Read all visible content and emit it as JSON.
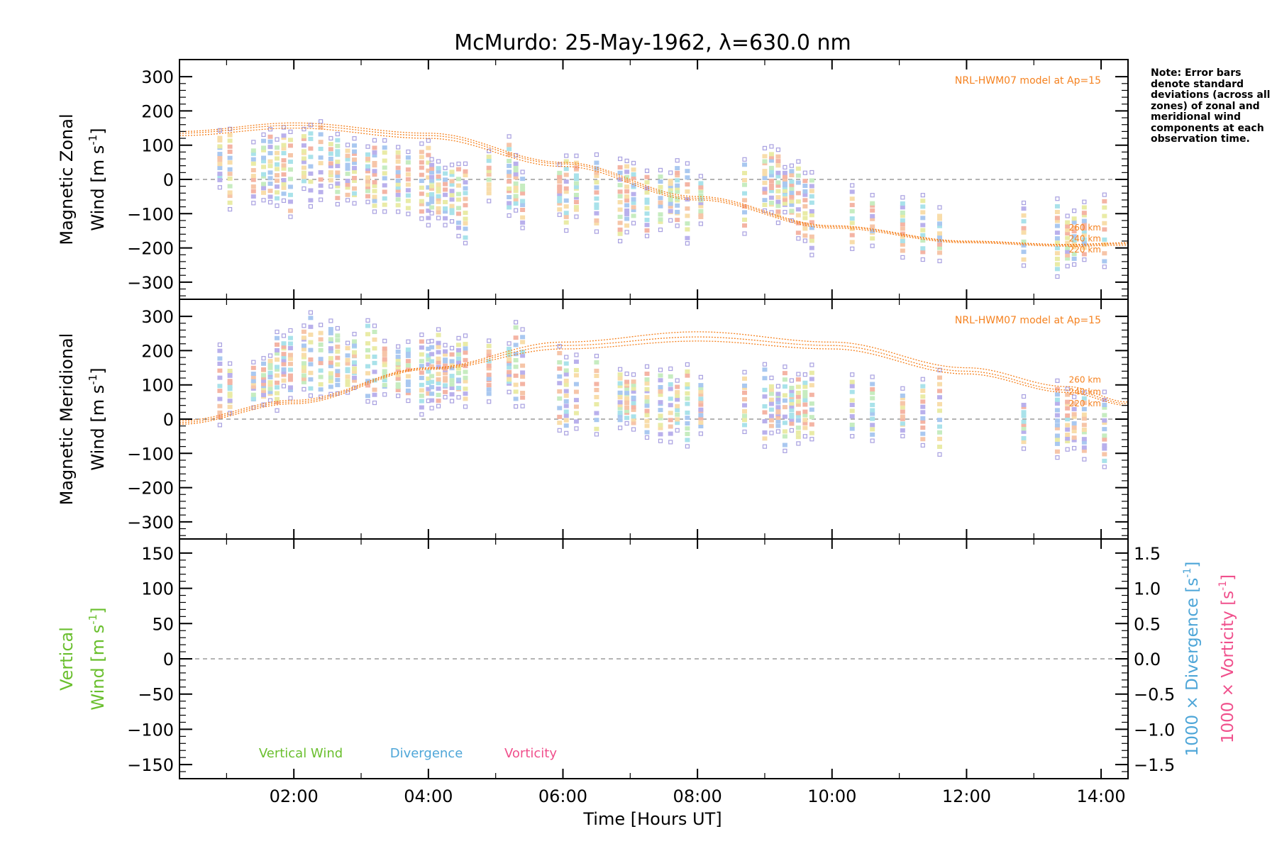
{
  "title": "McMurdo: 25-May-1962, λ=630.0 nm",
  "note": "Note: Error bars denote standard deviations (across all zones) of zonal and meridional wind components at each observation time.",
  "xlabel": "Time [Hours UT]",
  "x_tick_labels": [
    "02:00",
    "04:00",
    "06:00",
    "08:00",
    "10:00",
    "12:00",
    "14:00"
  ],
  "model_label": "NRL-HWM07 model at Ap=15",
  "altitude_labels": [
    "260 km",
    "240 km",
    "220 km"
  ],
  "panels": {
    "zonal": {
      "ylabel_line1": "Magnetic Zonal",
      "ylabel_line2": "Wind [m s",
      "ylabel_sup": "-1",
      "ylabel_close": "]",
      "yticks": [
        "300",
        "200",
        "100",
        "0",
        "−100",
        "−200",
        "−300"
      ]
    },
    "meridional": {
      "ylabel_line1": "Magnetic Meridional",
      "ylabel_line2": "Wind [m s",
      "ylabel_sup": "-1",
      "ylabel_close": "]",
      "yticks": [
        "300",
        "200",
        "100",
        "0",
        "−100",
        "−200",
        "−300"
      ]
    },
    "vertical": {
      "ylabel_line1": "Vertical",
      "ylabel_line2": "Wind [m s",
      "ylabel_sup": "-1",
      "ylabel_close": "]",
      "yticks": [
        "150",
        "100",
        "50",
        "0",
        "−50",
        "−100",
        "−150"
      ],
      "right_yticks": [
        "1.5",
        "1.0",
        "0.5",
        "0.0",
        "−0.5",
        "−1.0",
        "−1.5"
      ],
      "right_label_div": "1000 × Divergence [s",
      "right_label_vor": "1000 × Vorticity [s",
      "right_sup": "-1",
      "right_close": "]",
      "legend": [
        "Vertical Wind",
        "Divergence",
        "Vorticity"
      ]
    }
  },
  "colors": {
    "model": "#f58220",
    "vertical": "#6abf2e",
    "divergence": "#4ea6d8",
    "vorticity": "#f0508c",
    "axis": "#000000",
    "zero_line": "#888888"
  },
  "chart_data": [
    {
      "type": "scatter",
      "title": "McMurdo: 25-May-1962, λ=630.0 nm",
      "xlabel": "",
      "ylabel": "Magnetic Zonal Wind [m s-1]",
      "xlim": [
        0.3,
        14.4
      ],
      "ylim": [
        -350,
        350
      ],
      "grid": false,
      "obs_times": [
        0.9,
        1.05,
        1.4,
        1.55,
        1.65,
        1.75,
        1.85,
        1.95,
        2.15,
        2.25,
        2.4,
        2.55,
        2.65,
        2.8,
        2.9,
        3.1,
        3.2,
        3.35,
        3.55,
        3.7,
        3.9,
        4.0,
        4.05,
        4.15,
        4.25,
        4.35,
        4.45,
        4.55,
        4.9,
        5.2,
        5.3,
        5.4,
        5.95,
        6.05,
        6.2,
        6.5,
        6.85,
        6.95,
        7.05,
        7.25,
        7.45,
        7.6,
        7.7,
        7.85,
        8.05,
        8.7,
        9.0,
        9.1,
        9.2,
        9.3,
        9.4,
        9.5,
        9.6,
        9.7,
        10.3,
        10.6,
        11.05,
        11.35,
        11.6,
        12.85,
        13.35,
        13.5,
        13.6,
        13.75,
        14.05
      ],
      "centers": [
        60,
        30,
        20,
        35,
        40,
        20,
        45,
        15,
        60,
        40,
        55,
        50,
        30,
        20,
        25,
        15,
        10,
        10,
        0,
        -10,
        -5,
        -10,
        -20,
        -30,
        -50,
        -40,
        -60,
        -70,
        10,
        10,
        -10,
        -60,
        -30,
        -40,
        -20,
        -40,
        -60,
        -50,
        -40,
        -70,
        -60,
        -50,
        -40,
        -70,
        -60,
        -50,
        0,
        0,
        -20,
        -30,
        -40,
        -60,
        -80,
        -100,
        -110,
        -120,
        -140,
        -140,
        -160,
        -160,
        -170,
        -180,
        -170,
        -150,
        -150
      ],
      "series": [
        {
          "name": "260 km",
          "x": [
            0.3,
            2,
            4,
            6,
            8,
            10,
            12,
            13.5,
            14.4
          ],
          "values": [
            140,
            165,
            135,
            50,
            -50,
            -135,
            -180,
            -190,
            -185
          ]
        },
        {
          "name": "240 km",
          "x": [
            0.3,
            2,
            4,
            6,
            8,
            10,
            12,
            13.5,
            14.4
          ],
          "values": [
            135,
            158,
            128,
            45,
            -55,
            -138,
            -182,
            -192,
            -188
          ]
        },
        {
          "name": "220 km",
          "x": [
            0.3,
            2,
            4,
            6,
            8,
            10,
            12,
            13.5,
            14.4
          ],
          "values": [
            128,
            150,
            120,
            38,
            -60,
            -142,
            -185,
            -195,
            -192
          ]
        }
      ]
    },
    {
      "type": "scatter",
      "title": "",
      "xlabel": "",
      "ylabel": "Magnetic Meridional Wind [m s-1]",
      "xlim": [
        0.3,
        14.4
      ],
      "ylim": [
        -350,
        350
      ],
      "grid": false,
      "obs_times": [
        0.9,
        1.05,
        1.4,
        1.55,
        1.65,
        1.75,
        1.85,
        1.95,
        2.15,
        2.25,
        2.4,
        2.55,
        2.65,
        2.8,
        2.9,
        3.1,
        3.2,
        3.35,
        3.55,
        3.7,
        3.9,
        4.0,
        4.05,
        4.15,
        4.25,
        4.35,
        4.45,
        4.55,
        4.9,
        5.2,
        5.3,
        5.4,
        5.95,
        6.05,
        6.2,
        6.5,
        6.85,
        6.95,
        7.05,
        7.25,
        7.45,
        7.6,
        7.7,
        7.85,
        8.05,
        8.7,
        9.0,
        9.1,
        9.2,
        9.3,
        9.4,
        9.5,
        9.6,
        9.7,
        10.3,
        10.6,
        11.05,
        11.35,
        11.6,
        12.85,
        13.35,
        13.5,
        13.6,
        13.75,
        14.05
      ],
      "centers": [
        100,
        90,
        100,
        110,
        120,
        140,
        170,
        160,
        180,
        190,
        170,
        180,
        170,
        150,
        170,
        170,
        160,
        150,
        140,
        140,
        130,
        140,
        130,
        150,
        140,
        130,
        150,
        140,
        140,
        150,
        160,
        150,
        90,
        70,
        80,
        70,
        60,
        60,
        50,
        50,
        40,
        40,
        40,
        40,
        40,
        50,
        40,
        40,
        30,
        30,
        40,
        30,
        40,
        50,
        40,
        30,
        20,
        20,
        20,
        -10,
        0,
        0,
        -10,
        -20,
        -30
      ],
      "series": [
        {
          "name": "260 km",
          "x": [
            0.3,
            2,
            4,
            6,
            8,
            10,
            12,
            13.5,
            14.4
          ],
          "values": [
            -5,
            55,
            150,
            225,
            255,
            225,
            150,
            95,
            50
          ]
        },
        {
          "name": "240 km",
          "x": [
            0.3,
            2,
            4,
            6,
            8,
            10,
            12,
            13.5,
            14.4
          ],
          "values": [
            -10,
            50,
            148,
            215,
            240,
            215,
            140,
            85,
            45
          ]
        },
        {
          "name": "220 km",
          "x": [
            0.3,
            2,
            4,
            6,
            8,
            10,
            12,
            13.5,
            14.4
          ],
          "values": [
            -15,
            45,
            145,
            205,
            228,
            205,
            132,
            78,
            40
          ]
        }
      ]
    },
    {
      "type": "line",
      "title": "",
      "xlabel": "Time [Hours UT]",
      "ylabel": "Vertical Wind [m s-1]",
      "xlim": [
        0.3,
        14.4
      ],
      "ylim": [
        -170,
        170
      ],
      "y2lim": [
        -1.7,
        1.7
      ],
      "y2label": "1000 × Divergence [s-1] / 1000 × Vorticity [s-1]",
      "legend_position": "bottom-left",
      "series": [
        {
          "name": "Vertical Wind",
          "values": []
        },
        {
          "name": "Divergence",
          "values": []
        },
        {
          "name": "Vorticity",
          "values": []
        }
      ]
    }
  ]
}
